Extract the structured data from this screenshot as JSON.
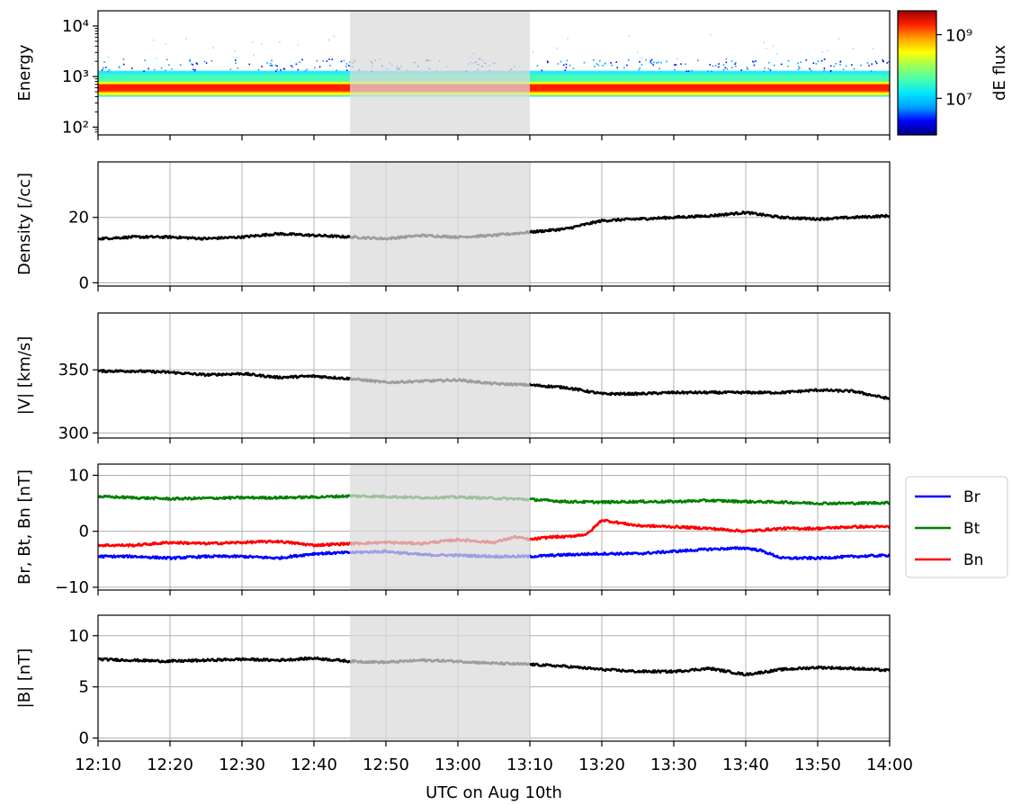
{
  "chart_data": [
    {
      "type": "heatmap",
      "id": "energy",
      "ylabel": "Energy",
      "yscale": "log",
      "ylim": [
        70,
        20000
      ],
      "ytick_values": [
        100,
        1000,
        10000
      ],
      "ytick_labels": [
        "10²",
        "10³",
        "10⁴"
      ],
      "colorbar": {
        "label": "dE flux",
        "scale": "log",
        "ticks": [
          {
            "value": 10000000,
            "label": "10⁷"
          },
          {
            "value": 1000000000,
            "label": "10⁹"
          }
        ],
        "colormap": [
          "#00007f",
          "#0000ff",
          "#00a0ff",
          "#00e5ff",
          "#48ffb0",
          "#9cff5a",
          "#ffff00",
          "#ffa000",
          "#ff2000",
          "#a00000"
        ]
      },
      "band": {
        "center_energy": 600,
        "peak_low": 480,
        "peak_high": 700,
        "halo_low": 400,
        "halo_high": 1300
      }
    },
    {
      "type": "line",
      "id": "density",
      "ylabel": "Density [/cc]",
      "ylim": [
        -1,
        37
      ],
      "ytick_values": [
        0,
        20
      ],
      "series": [
        {
          "color": "#000000",
          "x": [
            0,
            5,
            10,
            15,
            20,
            25,
            30,
            35,
            40,
            45,
            50,
            55,
            60,
            65,
            68,
            70,
            75,
            80,
            85,
            90,
            95,
            100,
            105,
            110
          ],
          "y": [
            13.5,
            14.0,
            14.0,
            13.5,
            14.0,
            15.0,
            14.5,
            14.0,
            13.5,
            14.5,
            14.0,
            14.5,
            15.5,
            16.5,
            18.0,
            19.0,
            19.5,
            20.0,
            20.5,
            21.5,
            20.0,
            19.5,
            20.0,
            20.5
          ]
        }
      ]
    },
    {
      "type": "line",
      "id": "velocity",
      "ylabel": "|V| [km/s]",
      "ylim": [
        296,
        395
      ],
      "ytick_values": [
        300,
        350
      ],
      "series": [
        {
          "color": "#000000",
          "x": [
            0,
            5,
            10,
            15,
            20,
            25,
            30,
            35,
            40,
            45,
            50,
            55,
            60,
            65,
            70,
            75,
            80,
            85,
            90,
            95,
            100,
            105,
            110
          ],
          "y": [
            349,
            349,
            348,
            346,
            347,
            344,
            345,
            343,
            340,
            341,
            342,
            339,
            338,
            336,
            331,
            331,
            332,
            332,
            332,
            332,
            334,
            333,
            327
          ]
        }
      ]
    },
    {
      "type": "line",
      "id": "bfield",
      "ylabel": "Br, Bt, Bn [nT]",
      "ylim": [
        -10.5,
        12
      ],
      "ytick_values": [
        -10,
        0,
        10
      ],
      "ytick_labels": [
        "−10",
        "0",
        "10"
      ],
      "series": [
        {
          "name": "Br",
          "color": "#0000ff",
          "x": [
            0,
            5,
            10,
            15,
            20,
            25,
            30,
            35,
            40,
            45,
            50,
            55,
            60,
            65,
            70,
            75,
            80,
            85,
            90,
            92,
            95,
            100,
            105,
            110
          ],
          "y": [
            -4.5,
            -4.5,
            -4.8,
            -4.5,
            -4.5,
            -4.8,
            -4.0,
            -3.8,
            -3.6,
            -4.2,
            -4.3,
            -4.5,
            -4.5,
            -4.2,
            -4.0,
            -4.0,
            -3.6,
            -3.2,
            -3.0,
            -3.4,
            -4.8,
            -4.8,
            -4.5,
            -4.3
          ]
        },
        {
          "name": "Bt",
          "color": "#008000",
          "x": [
            0,
            5,
            10,
            15,
            20,
            25,
            30,
            35,
            40,
            45,
            50,
            55,
            60,
            65,
            70,
            75,
            80,
            85,
            90,
            95,
            100,
            105,
            110
          ],
          "y": [
            6.2,
            6.0,
            5.8,
            5.9,
            6.0,
            6.0,
            6.1,
            6.3,
            6.2,
            6.0,
            6.1,
            5.9,
            5.7,
            5.3,
            5.2,
            5.3,
            5.3,
            5.5,
            5.3,
            5.2,
            5.0,
            5.0,
            5.1
          ]
        },
        {
          "name": "Bn",
          "color": "#ff0000",
          "x": [
            0,
            5,
            10,
            15,
            20,
            25,
            30,
            35,
            40,
            45,
            50,
            55,
            58,
            60,
            63,
            65,
            68,
            70,
            75,
            80,
            85,
            90,
            95,
            100,
            105,
            110
          ],
          "y": [
            -2.5,
            -2.5,
            -2.0,
            -2.2,
            -2.0,
            -1.8,
            -2.5,
            -2.2,
            -2.0,
            -2.2,
            -1.5,
            -2.0,
            -1.0,
            -1.5,
            -1.0,
            -1.0,
            -0.5,
            2.0,
            1.0,
            0.8,
            0.5,
            0.0,
            0.5,
            0.5,
            0.8,
            0.8
          ]
        }
      ],
      "legend": {
        "placement": "right",
        "entries": [
          "Br",
          "Bt",
          "Bn"
        ]
      }
    },
    {
      "type": "line",
      "id": "bmag",
      "ylabel": "|B| [nT]",
      "ylim": [
        -0.3,
        12
      ],
      "ytick_values": [
        0,
        5,
        10
      ],
      "series": [
        {
          "color": "#000000",
          "x": [
            0,
            5,
            10,
            15,
            20,
            25,
            30,
            35,
            40,
            45,
            50,
            55,
            60,
            65,
            70,
            75,
            80,
            85,
            90,
            95,
            100,
            105,
            110
          ],
          "y": [
            7.7,
            7.6,
            7.5,
            7.6,
            7.7,
            7.6,
            7.8,
            7.5,
            7.4,
            7.6,
            7.5,
            7.3,
            7.2,
            7.0,
            6.7,
            6.5,
            6.5,
            6.8,
            6.2,
            6.7,
            6.9,
            6.8,
            6.6
          ]
        }
      ]
    }
  ],
  "shared_x": {
    "xlim": [
      0,
      110
    ],
    "tick_values": [
      0,
      10,
      20,
      30,
      40,
      50,
      60,
      70,
      80,
      90,
      100,
      110
    ],
    "tick_labels": [
      "12:10",
      "12:20",
      "12:30",
      "12:40",
      "12:50",
      "13:00",
      "13:10",
      "13:20",
      "13:30",
      "13:40",
      "13:50",
      "14:00"
    ],
    "xlabel": "UTC on Aug 10th",
    "shaded_interval": {
      "from": 35,
      "to": 60,
      "color": "#d9d9d9",
      "opacity": 0.72
    }
  }
}
